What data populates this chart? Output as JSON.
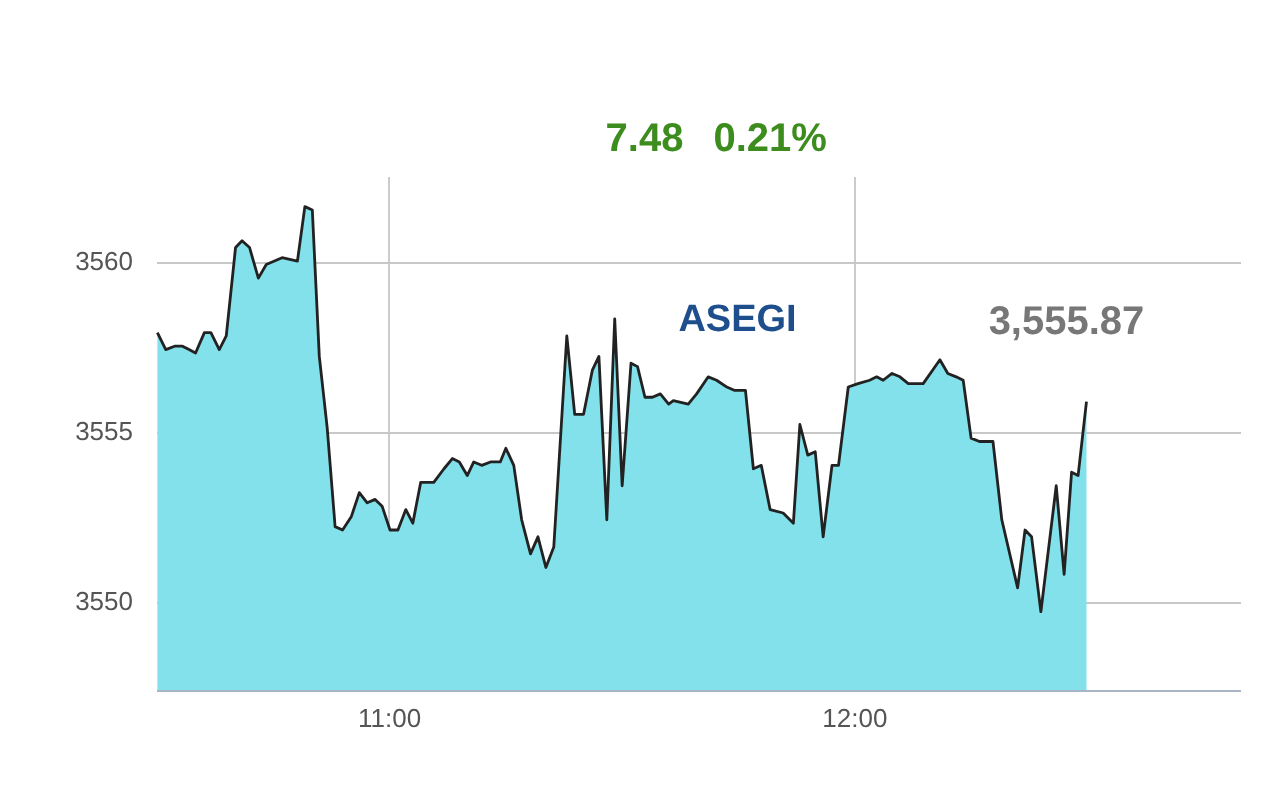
{
  "chart_data": {
    "type": "area",
    "x": [
      10.503,
      10.521,
      10.54,
      10.557,
      10.571,
      10.585,
      10.604,
      10.618,
      10.636,
      10.651,
      10.671,
      10.685,
      10.701,
      10.72,
      10.737,
      10.771,
      10.804,
      10.82,
      10.836,
      10.851,
      10.868,
      10.885,
      10.901,
      10.92,
      10.937,
      10.954,
      10.971,
      10.986,
      11.003,
      11.02,
      11.037,
      11.052,
      11.069,
      11.097,
      11.119,
      11.137,
      11.152,
      11.169,
      11.183,
      11.2,
      11.219,
      11.24,
      11.252,
      11.269,
      11.286,
      11.305,
      11.321,
      11.338,
      11.355,
      11.383,
      11.4,
      11.419,
      11.438,
      11.452,
      11.469,
      11.486,
      11.502,
      11.521,
      11.535,
      11.551,
      11.567,
      11.584,
      11.602,
      11.612,
      11.644,
      11.662,
      11.687,
      11.705,
      11.727,
      11.744,
      11.767,
      11.784,
      11.801,
      11.82,
      11.848,
      11.87,
      11.884,
      11.901,
      11.917,
      11.934,
      11.953,
      11.967,
      11.988,
      12.009,
      12.034,
      12.049,
      12.063,
      12.082,
      12.099,
      12.117,
      12.149,
      12.185,
      12.202,
      12.22,
      12.235,
      12.252,
      12.27,
      12.299,
      12.318,
      12.352,
      12.368,
      12.382,
      12.402,
      12.435,
      12.452,
      12.468,
      12.482,
      12.5
    ],
    "series": [
      {
        "color": "#82e1ea",
        "values": [
          3557.9,
          3557.4,
          3557.5,
          3557.5,
          3557.4,
          3557.3,
          3557.9,
          3557.9,
          3557.4,
          3557.8,
          3560.4,
          3560.6,
          3560.4,
          3559.5,
          3559.9,
          3560.1,
          3560.0,
          3561.6,
          3561.5,
          3557.2,
          3555.1,
          3552.2,
          3552.1,
          3552.5,
          3553.2,
          3552.9,
          3553.0,
          3552.8,
          3552.1,
          3552.1,
          3552.7,
          3552.3,
          3553.5,
          3553.5,
          3553.9,
          3554.2,
          3554.1,
          3553.7,
          3554.1,
          3554.0,
          3554.1,
          3554.1,
          3554.5,
          3554.0,
          3552.4,
          3551.4,
          3551.9,
          3551.0,
          3551.6,
          3557.8,
          3555.5,
          3555.5,
          3556.8,
          3557.2,
          3552.4,
          3558.3,
          3553.4,
          3557.0,
          3556.9,
          3556.0,
          3556.0,
          3556.1,
          3555.8,
          3555.9,
          3555.8,
          3556.1,
          3556.6,
          3556.5,
          3556.3,
          3556.2,
          3556.2,
          3553.9,
          3554.0,
          3552.7,
          3552.6,
          3552.3,
          3555.2,
          3554.3,
          3554.4,
          3551.9,
          3554.0,
          3554.0,
          3556.3,
          3556.4,
          3556.5,
          3556.6,
          3556.5,
          3556.7,
          3556.6,
          3556.4,
          3556.4,
          3557.1,
          3556.7,
          3556.6,
          3556.5,
          3554.8,
          3554.7,
          3554.7,
          3552.4,
          3550.4,
          3552.1,
          3551.9,
          3549.7,
          3553.4,
          3550.8,
          3553.8,
          3553.7,
          3555.87
        ]
      }
    ],
    "xlim": [
      10.5,
      12.83
    ],
    "xticks": [
      {
        "value": 11,
        "label": "11:00"
      },
      {
        "value": 12,
        "label": "12:00"
      }
    ],
    "ylim": [
      3547.4,
      3562.5
    ],
    "yticks": [
      3550,
      3555,
      3560
    ],
    "grid": true,
    "annotations": [
      "7.48",
      "0.21%",
      "ASEGI",
      {
        "text": "3,555.87",
        "x": 12.5,
        "y": 3555.87
      }
    ]
  }
}
